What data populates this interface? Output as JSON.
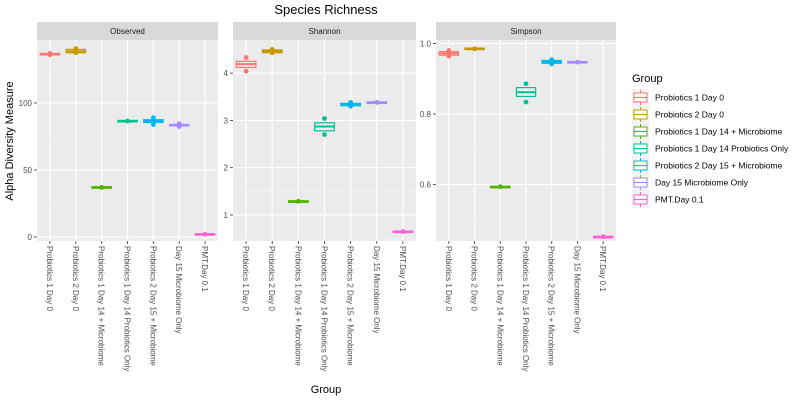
{
  "chart_data": {
    "type": "box",
    "title": "Species Richness",
    "xlabel": "Group",
    "ylabel": "Alpha Diversity Measure",
    "grid": true,
    "legend": {
      "title": "Group",
      "placement": "right"
    },
    "categories": [
      "Probiotics 1 Day 0",
      "Probiotics 2 Day 0",
      "Probiotics 1 Day 14 + Microbiome",
      "Probiotics 1 Day 14 Probiotics Only",
      "Probiotics 2 Day 15 + Microbiome",
      "Day 15 Microbiome Only",
      "PMT.Day 0.1"
    ],
    "colors": [
      "#F8766D",
      "#C49A00",
      "#53B400",
      "#00C094",
      "#00B6EB",
      "#A58AFF",
      "#FB61D7"
    ],
    "panels": [
      {
        "name": "Observed",
        "ylim": [
          -3,
          147
        ],
        "yticks": [
          0,
          50,
          100
        ],
        "ytick_labels": [
          "0",
          "50",
          "100"
        ],
        "boxes": [
          {
            "q1": 136,
            "median": 136.5,
            "q3": 137,
            "min": 136,
            "max": 137,
            "points": [
              136,
              137
            ]
          },
          {
            "q1": 137.5,
            "median": 138.5,
            "q3": 140,
            "min": 137.5,
            "max": 140.5,
            "points": [
              137.5,
              140.5
            ]
          },
          {
            "q1": 36.5,
            "median": 37,
            "q3": 37.5,
            "min": 36.5,
            "max": 37.5,
            "points": [
              37
            ]
          },
          {
            "q1": 86,
            "median": 86.5,
            "q3": 87,
            "min": 86,
            "max": 87,
            "points": [
              86.5
            ]
          },
          {
            "q1": 85.5,
            "median": 86.5,
            "q3": 87.5,
            "min": 84,
            "max": 89,
            "points": [
              84,
              89
            ]
          },
          {
            "q1": 83,
            "median": 83.5,
            "q3": 84,
            "min": 82.5,
            "max": 84.5,
            "points": [
              82.5,
              84.5
            ]
          },
          {
            "q1": 1.5,
            "median": 2,
            "q3": 2.5,
            "min": 1.5,
            "max": 2.5,
            "points": [
              2
            ]
          }
        ]
      },
      {
        "name": "Shannon",
        "ylim": [
          0.45,
          4.7
        ],
        "yticks": [
          1,
          2,
          3,
          4
        ],
        "ytick_labels": [
          "1",
          "2",
          "3",
          "4"
        ],
        "boxes": [
          {
            "q1": 4.12,
            "median": 4.19,
            "q3": 4.25,
            "min": 4.12,
            "max": 4.25,
            "points": [
              4.04,
              4.33
            ]
          },
          {
            "q1": 4.43,
            "median": 4.46,
            "q3": 4.49,
            "min": 4.43,
            "max": 4.49,
            "points": [
              4.43,
              4.5
            ]
          },
          {
            "q1": 1.28,
            "median": 1.29,
            "q3": 1.3,
            "min": 1.28,
            "max": 1.3,
            "points": [
              1.29
            ]
          },
          {
            "q1": 2.78,
            "median": 2.87,
            "q3": 2.95,
            "min": 2.78,
            "max": 2.95,
            "points": [
              2.7,
              3.04
            ]
          },
          {
            "q1": 3.31,
            "median": 3.33,
            "q3": 3.36,
            "min": 3.3,
            "max": 3.38,
            "points": [
              3.3,
              3.38
            ]
          },
          {
            "q1": 3.37,
            "median": 3.38,
            "q3": 3.39,
            "min": 3.37,
            "max": 3.39,
            "points": [
              3.38
            ]
          },
          {
            "q1": 0.64,
            "median": 0.65,
            "q3": 0.66,
            "min": 0.64,
            "max": 0.66,
            "points": [
              0.65
            ]
          }
        ]
      },
      {
        "name": "Simpson",
        "ylim": [
          0.44,
          1.01
        ],
        "yticks": [
          0.6,
          0.8,
          1.0
        ],
        "ytick_labels": [
          "0.6",
          "0.8",
          "1.0"
        ],
        "boxes": [
          {
            "q1": 0.967,
            "median": 0.972,
            "q3": 0.977,
            "min": 0.964,
            "max": 0.98,
            "points": [
              0.964,
              0.98
            ]
          },
          {
            "q1": 0.983,
            "median": 0.985,
            "q3": 0.987,
            "min": 0.983,
            "max": 0.987,
            "points": [
              0.985
            ]
          },
          {
            "q1": 0.593,
            "median": 0.594,
            "q3": 0.595,
            "min": 0.593,
            "max": 0.595,
            "points": [
              0.594
            ]
          },
          {
            "q1": 0.85,
            "median": 0.862,
            "q3": 0.875,
            "min": 0.85,
            "max": 0.875,
            "points": [
              0.834,
              0.886
            ]
          },
          {
            "q1": 0.944,
            "median": 0.948,
            "q3": 0.952,
            "min": 0.942,
            "max": 0.954,
            "points": [
              0.942,
              0.954
            ]
          },
          {
            "q1": 0.945,
            "median": 0.947,
            "q3": 0.949,
            "min": 0.945,
            "max": 0.949,
            "points": [
              0.947
            ]
          },
          {
            "q1": 0.451,
            "median": 0.452,
            "q3": 0.453,
            "min": 0.451,
            "max": 0.453,
            "points": [
              0.452
            ]
          }
        ]
      }
    ]
  }
}
